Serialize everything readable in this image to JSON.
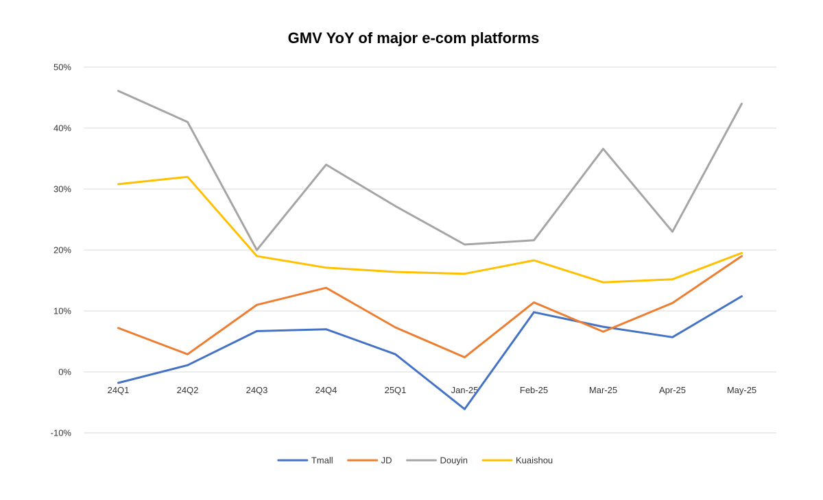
{
  "chart_data": {
    "type": "line",
    "title": "GMV YoY of major e-com platforms",
    "categories": [
      "24Q1",
      "24Q2",
      "24Q3",
      "24Q4",
      "25Q1",
      "Jan-25",
      "Feb-25",
      "Mar-25",
      "Apr-25",
      "May-25"
    ],
    "yticks": [
      "-10%",
      "0%",
      "10%",
      "20%",
      "30%",
      "40%",
      "50%"
    ],
    "ylim": [
      -10,
      50
    ],
    "grid": true,
    "legend_position": "bottom",
    "series": [
      {
        "name": "Tmall",
        "color": "#4472C4",
        "values": [
          -1.8,
          1.1,
          6.7,
          7.0,
          2.9,
          -6.1,
          9.8,
          7.4,
          5.7,
          12.4
        ]
      },
      {
        "name": "JD",
        "color": "#ED7D31",
        "values": [
          7.2,
          2.9,
          11.0,
          13.8,
          7.3,
          2.4,
          11.4,
          6.6,
          11.3,
          19.0
        ]
      },
      {
        "name": "Douyin",
        "color": "#A5A5A5",
        "values": [
          46.1,
          41.0,
          20.0,
          34.0,
          27.2,
          20.9,
          21.6,
          36.6,
          23.0,
          44.0
        ]
      },
      {
        "name": "Kuaishou",
        "color": "#FFC000",
        "values": [
          30.8,
          32.0,
          19.0,
          17.1,
          16.4,
          16.1,
          18.3,
          14.7,
          15.2,
          19.5
        ]
      }
    ]
  }
}
